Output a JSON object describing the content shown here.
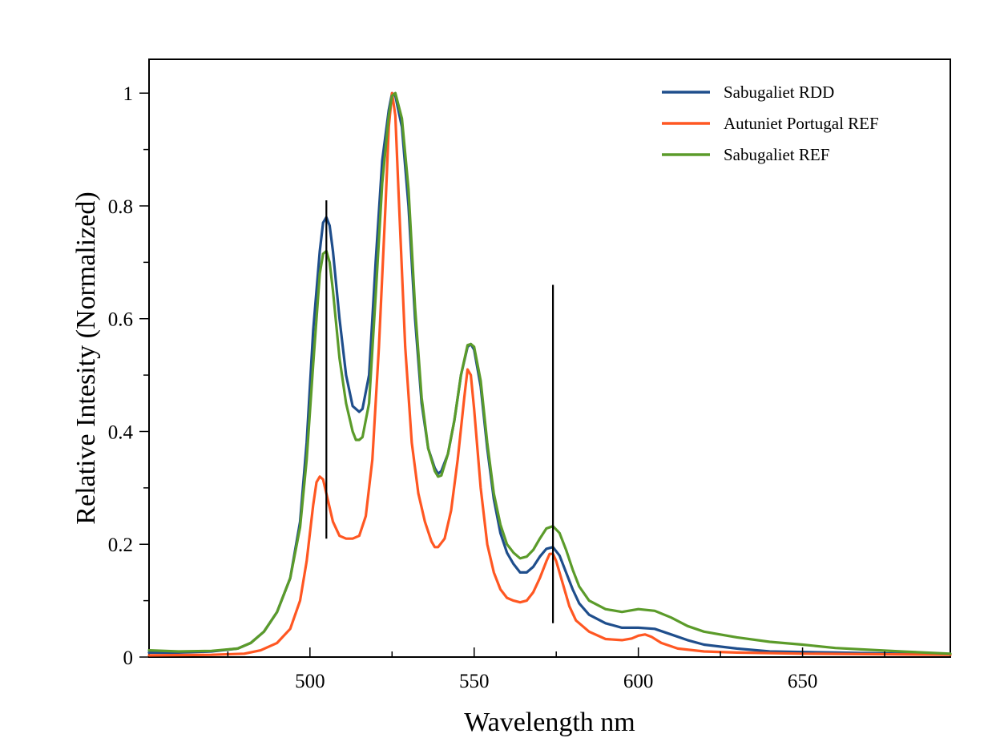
{
  "chart_data": {
    "type": "line",
    "title": "",
    "xlabel": "Wavelength nm",
    "ylabel": "Relative Intesity (Normalized)",
    "xlim": [
      451,
      695
    ],
    "ylim": [
      0,
      1.06
    ],
    "x_ticks": [
      500,
      550,
      600,
      650
    ],
    "x_tick_labels": [
      "500",
      "550",
      "600",
      "650"
    ],
    "x_minor_ticks": [
      475,
      525,
      575,
      625,
      675
    ],
    "y_ticks": [
      0,
      0.2,
      0.4,
      0.6,
      0.8,
      1
    ],
    "y_tick_labels": [
      "0",
      "0.2",
      "0.4",
      "0.6",
      "0.8",
      "1"
    ],
    "y_minor_ticks": [
      0.1,
      0.3,
      0.5,
      0.7,
      0.9
    ],
    "grid": false,
    "legend_position": "top-right",
    "series": [
      {
        "name": "Sabugaliet RDD",
        "color": "#1f4e8c",
        "points": [
          [
            451,
            0.008
          ],
          [
            460,
            0.008
          ],
          [
            470,
            0.01
          ],
          [
            478,
            0.015
          ],
          [
            482,
            0.025
          ],
          [
            486,
            0.045
          ],
          [
            490,
            0.08
          ],
          [
            494,
            0.14
          ],
          [
            497,
            0.24
          ],
          [
            499,
            0.38
          ],
          [
            501,
            0.58
          ],
          [
            503,
            0.72
          ],
          [
            504,
            0.77
          ],
          [
            505,
            0.78
          ],
          [
            506,
            0.765
          ],
          [
            507,
            0.72
          ],
          [
            509,
            0.6
          ],
          [
            511,
            0.5
          ],
          [
            513,
            0.445
          ],
          [
            515,
            0.435
          ],
          [
            516,
            0.44
          ],
          [
            518,
            0.5
          ],
          [
            520,
            0.7
          ],
          [
            522,
            0.88
          ],
          [
            524,
            0.97
          ],
          [
            525,
            1.0
          ],
          [
            526,
            0.995
          ],
          [
            528,
            0.94
          ],
          [
            530,
            0.8
          ],
          [
            532,
            0.6
          ],
          [
            534,
            0.45
          ],
          [
            536,
            0.37
          ],
          [
            538,
            0.335
          ],
          [
            539,
            0.325
          ],
          [
            540,
            0.33
          ],
          [
            542,
            0.36
          ],
          [
            544,
            0.42
          ],
          [
            546,
            0.5
          ],
          [
            548,
            0.55
          ],
          [
            549,
            0.555
          ],
          [
            550,
            0.545
          ],
          [
            552,
            0.48
          ],
          [
            554,
            0.37
          ],
          [
            556,
            0.28
          ],
          [
            558,
            0.22
          ],
          [
            560,
            0.185
          ],
          [
            562,
            0.165
          ],
          [
            564,
            0.15
          ],
          [
            566,
            0.15
          ],
          [
            568,
            0.16
          ],
          [
            570,
            0.178
          ],
          [
            572,
            0.192
          ],
          [
            574,
            0.195
          ],
          [
            576,
            0.18
          ],
          [
            578,
            0.15
          ],
          [
            580,
            0.12
          ],
          [
            582,
            0.095
          ],
          [
            585,
            0.075
          ],
          [
            590,
            0.06
          ],
          [
            595,
            0.052
          ],
          [
            600,
            0.052
          ],
          [
            605,
            0.05
          ],
          [
            610,
            0.04
          ],
          [
            615,
            0.03
          ],
          [
            620,
            0.022
          ],
          [
            630,
            0.015
          ],
          [
            640,
            0.01
          ],
          [
            660,
            0.008
          ],
          [
            680,
            0.006
          ],
          [
            695,
            0.005
          ]
        ]
      },
      {
        "name": "Autuniet Portugal REF",
        "color": "#ff5722",
        "points": [
          [
            451,
            0.003
          ],
          [
            470,
            0.004
          ],
          [
            480,
            0.006
          ],
          [
            485,
            0.012
          ],
          [
            490,
            0.025
          ],
          [
            494,
            0.05
          ],
          [
            497,
            0.1
          ],
          [
            499,
            0.17
          ],
          [
            501,
            0.27
          ],
          [
            502,
            0.31
          ],
          [
            503,
            0.32
          ],
          [
            504,
            0.315
          ],
          [
            505,
            0.29
          ],
          [
            507,
            0.24
          ],
          [
            509,
            0.215
          ],
          [
            511,
            0.21
          ],
          [
            513,
            0.21
          ],
          [
            515,
            0.215
          ],
          [
            517,
            0.25
          ],
          [
            519,
            0.35
          ],
          [
            521,
            0.55
          ],
          [
            523,
            0.8
          ],
          [
            524,
            0.94
          ],
          [
            525,
            1.0
          ],
          [
            526,
            0.96
          ],
          [
            527,
            0.82
          ],
          [
            529,
            0.55
          ],
          [
            531,
            0.38
          ],
          [
            533,
            0.29
          ],
          [
            535,
            0.24
          ],
          [
            537,
            0.205
          ],
          [
            538,
            0.195
          ],
          [
            539,
            0.195
          ],
          [
            541,
            0.21
          ],
          [
            543,
            0.26
          ],
          [
            545,
            0.35
          ],
          [
            547,
            0.46
          ],
          [
            548,
            0.51
          ],
          [
            549,
            0.5
          ],
          [
            550,
            0.44
          ],
          [
            552,
            0.3
          ],
          [
            554,
            0.2
          ],
          [
            556,
            0.15
          ],
          [
            558,
            0.12
          ],
          [
            560,
            0.105
          ],
          [
            562,
            0.1
          ],
          [
            564,
            0.097
          ],
          [
            566,
            0.1
          ],
          [
            568,
            0.115
          ],
          [
            570,
            0.14
          ],
          [
            572,
            0.17
          ],
          [
            573,
            0.183
          ],
          [
            574,
            0.183
          ],
          [
            575,
            0.17
          ],
          [
            577,
            0.13
          ],
          [
            579,
            0.09
          ],
          [
            581,
            0.065
          ],
          [
            585,
            0.045
          ],
          [
            590,
            0.032
          ],
          [
            595,
            0.03
          ],
          [
            598,
            0.033
          ],
          [
            600,
            0.038
          ],
          [
            602,
            0.04
          ],
          [
            604,
            0.036
          ],
          [
            607,
            0.025
          ],
          [
            612,
            0.015
          ],
          [
            620,
            0.01
          ],
          [
            630,
            0.008
          ],
          [
            650,
            0.006
          ],
          [
            695,
            0.004
          ]
        ]
      },
      {
        "name": "Sabugaliet REF",
        "color": "#5b9b2a",
        "points": [
          [
            451,
            0.012
          ],
          [
            460,
            0.01
          ],
          [
            470,
            0.011
          ],
          [
            478,
            0.015
          ],
          [
            482,
            0.025
          ],
          [
            486,
            0.045
          ],
          [
            490,
            0.08
          ],
          [
            494,
            0.14
          ],
          [
            497,
            0.23
          ],
          [
            499,
            0.35
          ],
          [
            501,
            0.52
          ],
          [
            503,
            0.68
          ],
          [
            504,
            0.715
          ],
          [
            505,
            0.72
          ],
          [
            506,
            0.7
          ],
          [
            507,
            0.65
          ],
          [
            509,
            0.53
          ],
          [
            511,
            0.45
          ],
          [
            513,
            0.4
          ],
          [
            514,
            0.385
          ],
          [
            515,
            0.385
          ],
          [
            516,
            0.39
          ],
          [
            518,
            0.45
          ],
          [
            520,
            0.64
          ],
          [
            522,
            0.84
          ],
          [
            524,
            0.96
          ],
          [
            525,
            0.995
          ],
          [
            526,
            1.0
          ],
          [
            528,
            0.955
          ],
          [
            530,
            0.83
          ],
          [
            532,
            0.62
          ],
          [
            534,
            0.46
          ],
          [
            536,
            0.37
          ],
          [
            538,
            0.33
          ],
          [
            539,
            0.32
          ],
          [
            540,
            0.322
          ],
          [
            542,
            0.36
          ],
          [
            544,
            0.42
          ],
          [
            546,
            0.5
          ],
          [
            548,
            0.553
          ],
          [
            549,
            0.555
          ],
          [
            550,
            0.55
          ],
          [
            552,
            0.49
          ],
          [
            554,
            0.38
          ],
          [
            556,
            0.29
          ],
          [
            558,
            0.235
          ],
          [
            560,
            0.2
          ],
          [
            562,
            0.185
          ],
          [
            564,
            0.175
          ],
          [
            566,
            0.178
          ],
          [
            568,
            0.19
          ],
          [
            570,
            0.21
          ],
          [
            572,
            0.228
          ],
          [
            574,
            0.232
          ],
          [
            576,
            0.22
          ],
          [
            578,
            0.19
          ],
          [
            580,
            0.155
          ],
          [
            582,
            0.125
          ],
          [
            585,
            0.1
          ],
          [
            590,
            0.085
          ],
          [
            595,
            0.08
          ],
          [
            600,
            0.085
          ],
          [
            605,
            0.082
          ],
          [
            610,
            0.07
          ],
          [
            615,
            0.055
          ],
          [
            620,
            0.045
          ],
          [
            630,
            0.035
          ],
          [
            640,
            0.027
          ],
          [
            650,
            0.022
          ],
          [
            660,
            0.016
          ],
          [
            670,
            0.013
          ],
          [
            680,
            0.01
          ],
          [
            695,
            0.006
          ]
        ]
      }
    ],
    "reference_lines": [
      {
        "x": 505,
        "y_range": [
          0.21,
          0.81
        ],
        "color": "#000000"
      },
      {
        "x": 574,
        "y_range": [
          0.06,
          0.66
        ],
        "color": "#000000"
      }
    ]
  }
}
